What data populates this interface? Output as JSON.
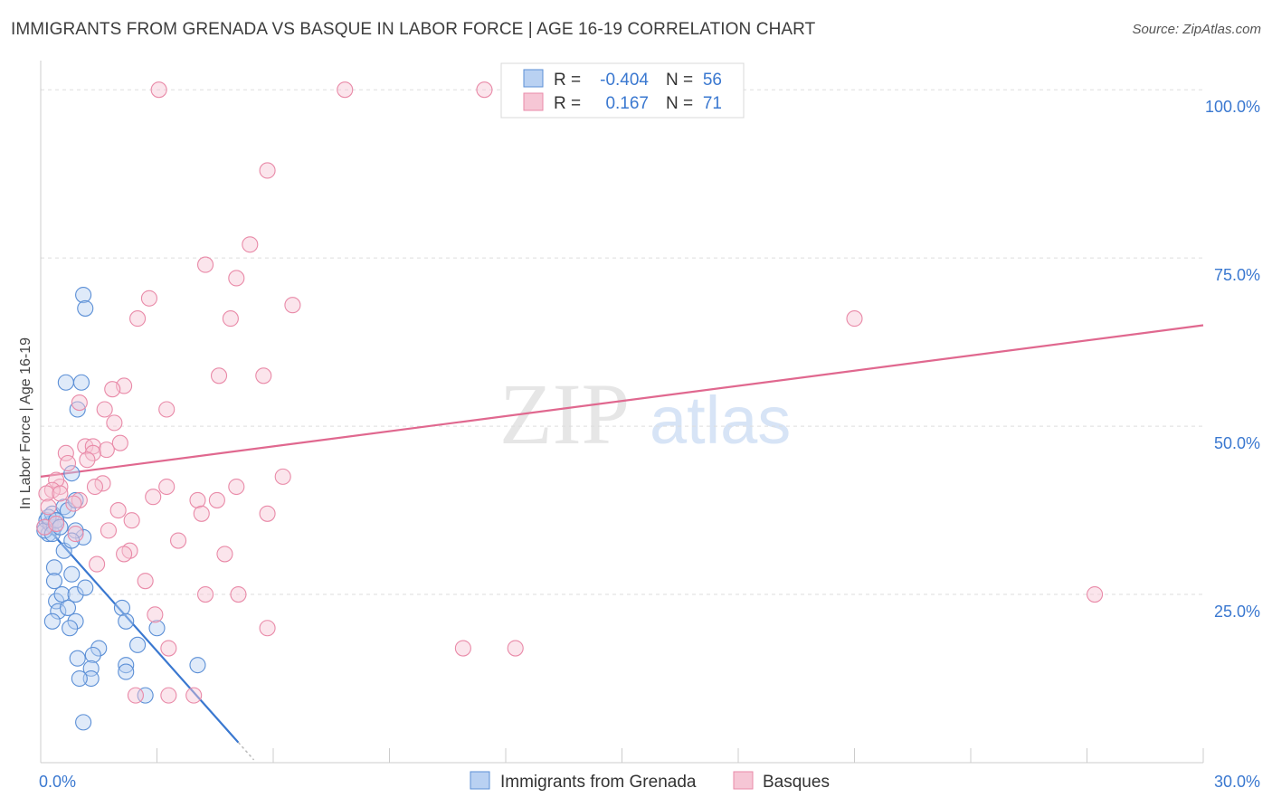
{
  "header": {
    "title": "IMMIGRANTS FROM GRENADA VS BASQUE IN LABOR FORCE | AGE 16-19 CORRELATION CHART",
    "source": "Source: ZipAtlas.com"
  },
  "watermark": {
    "zip": "ZIP",
    "atlas": "atlas"
  },
  "colors": {
    "blue": "#5b8fd6",
    "blue_fill": "#b9d1f2",
    "blue_line": "#3a78d0",
    "pink": "#e98aa8",
    "pink_fill": "#f6c6d5",
    "pink_line": "#e0688f",
    "axis_text": "#3a78d0",
    "grid": "#dddddd"
  },
  "legend_top": {
    "rows": [
      {
        "r_label": "R =",
        "r_value": "-0.404",
        "n_label": "N =",
        "n_value": "56"
      },
      {
        "r_label": "R =",
        "r_value": "0.167",
        "n_label": "N =",
        "n_value": "71"
      }
    ]
  },
  "legend_bottom": {
    "items": [
      "Immigrants from Grenada",
      "Basques"
    ]
  },
  "chart_data": {
    "type": "scatter",
    "title": "IMMIGRANTS FROM GRENADA VS BASQUE IN LABOR FORCE | AGE 16-19 CORRELATION CHART",
    "xlabel": "",
    "ylabel": "In Labor Force | Age 16-19",
    "xlim": [
      0,
      30
    ],
    "ylim": [
      0,
      105
    ],
    "x_ticks_labels": [
      "0.0%",
      "30.0%"
    ],
    "y_ticks": [
      25,
      50,
      75,
      100
    ],
    "y_ticks_labels": [
      "25.0%",
      "50.0%",
      "75.0%",
      "100.0%"
    ],
    "grid": true,
    "series": [
      {
        "name": "Immigrants from Grenada",
        "color": "#5b8fd6",
        "r": -0.404,
        "n": 56,
        "trend": {
          "x": [
            0.0,
            5.1
          ],
          "y": [
            36.0,
            3.0
          ]
        },
        "points": [
          [
            0.1,
            35
          ],
          [
            0.15,
            36
          ],
          [
            0.2,
            34
          ],
          [
            0.25,
            35.5
          ],
          [
            0.3,
            37
          ],
          [
            0.35,
            35
          ],
          [
            0.4,
            36
          ],
          [
            0.1,
            34.5
          ],
          [
            0.2,
            36.5
          ],
          [
            0.3,
            34
          ],
          [
            0.4,
            36
          ],
          [
            0.5,
            35
          ],
          [
            0.6,
            38
          ],
          [
            0.7,
            37.5
          ],
          [
            0.9,
            39
          ],
          [
            0.8,
            43
          ],
          [
            0.65,
            56.5
          ],
          [
            1.05,
            56.5
          ],
          [
            1.1,
            69.5
          ],
          [
            1.15,
            67.5
          ],
          [
            0.95,
            52.5
          ],
          [
            1.1,
            33.5
          ],
          [
            0.9,
            34.5
          ],
          [
            0.6,
            31.5
          ],
          [
            0.8,
            33
          ],
          [
            0.35,
            29
          ],
          [
            0.35,
            27
          ],
          [
            0.8,
            28
          ],
          [
            0.4,
            24
          ],
          [
            0.55,
            25
          ],
          [
            0.9,
            25
          ],
          [
            1.15,
            26
          ],
          [
            0.45,
            22.5
          ],
          [
            0.7,
            23
          ],
          [
            0.3,
            21
          ],
          [
            0.9,
            21
          ],
          [
            0.75,
            20
          ],
          [
            2.1,
            23
          ],
          [
            2.2,
            21
          ],
          [
            3.0,
            20
          ],
          [
            1.5,
            17
          ],
          [
            1.35,
            16
          ],
          [
            0.95,
            15.5
          ],
          [
            2.5,
            17.5
          ],
          [
            2.2,
            14.5
          ],
          [
            2.2,
            13.5
          ],
          [
            1.3,
            14
          ],
          [
            1.3,
            12.5
          ],
          [
            1.0,
            12.5
          ],
          [
            2.7,
            10
          ],
          [
            4.05,
            14.5
          ],
          [
            1.1,
            6
          ]
        ]
      },
      {
        "name": "Basques",
        "color": "#e98aa8",
        "r": 0.167,
        "n": 71,
        "trend": {
          "x": [
            0.0,
            30.0
          ],
          "y": [
            42.5,
            65.0
          ]
        },
        "points": [
          [
            3.05,
            100
          ],
          [
            7.85,
            100
          ],
          [
            11.45,
            100
          ],
          [
            14.25,
            100
          ],
          [
            5.85,
            88
          ],
          [
            5.4,
            77
          ],
          [
            4.25,
            74
          ],
          [
            5.05,
            72
          ],
          [
            6.5,
            68
          ],
          [
            2.8,
            69
          ],
          [
            2.5,
            66
          ],
          [
            4.9,
            66
          ],
          [
            21.0,
            66
          ],
          [
            4.6,
            57.5
          ],
          [
            5.75,
            57.5
          ],
          [
            2.15,
            56
          ],
          [
            1.85,
            55.5
          ],
          [
            1.0,
            53.5
          ],
          [
            3.25,
            52.5
          ],
          [
            1.65,
            52.5
          ],
          [
            1.9,
            50.5
          ],
          [
            2.05,
            47.5
          ],
          [
            1.15,
            47
          ],
          [
            1.35,
            47
          ],
          [
            1.7,
            46.5
          ],
          [
            0.65,
            46
          ],
          [
            1.35,
            46
          ],
          [
            1.2,
            45
          ],
          [
            0.7,
            44.5
          ],
          [
            6.25,
            42.5
          ],
          [
            0.5,
            41
          ],
          [
            0.4,
            42
          ],
          [
            1.6,
            41.5
          ],
          [
            1.4,
            41
          ],
          [
            3.25,
            41
          ],
          [
            5.05,
            41
          ],
          [
            0.3,
            40.5
          ],
          [
            0.15,
            40
          ],
          [
            0.5,
            40
          ],
          [
            1.0,
            39
          ],
          [
            0.85,
            38.5
          ],
          [
            2.9,
            39.5
          ],
          [
            4.05,
            39
          ],
          [
            4.55,
            39
          ],
          [
            0.2,
            38
          ],
          [
            2.0,
            37.5
          ],
          [
            4.15,
            37
          ],
          [
            5.85,
            37
          ],
          [
            2.35,
            36
          ],
          [
            0.1,
            35
          ],
          [
            0.4,
            35.5
          ],
          [
            1.75,
            34.5
          ],
          [
            0.9,
            34
          ],
          [
            3.55,
            33
          ],
          [
            2.3,
            31.5
          ],
          [
            2.15,
            31
          ],
          [
            4.75,
            31
          ],
          [
            1.45,
            29.5
          ],
          [
            2.7,
            27
          ],
          [
            4.25,
            25
          ],
          [
            5.1,
            25
          ],
          [
            27.2,
            25
          ],
          [
            2.95,
            22
          ],
          [
            5.85,
            20
          ],
          [
            10.9,
            17
          ],
          [
            12.25,
            17
          ],
          [
            3.3,
            17
          ],
          [
            2.45,
            10
          ],
          [
            3.3,
            10
          ],
          [
            3.95,
            10
          ]
        ]
      }
    ]
  }
}
